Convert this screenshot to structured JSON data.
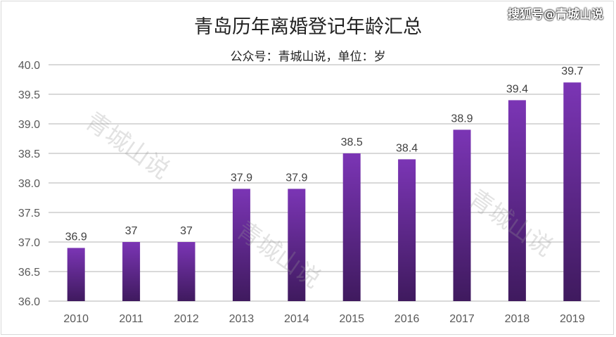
{
  "chart_data": {
    "type": "bar",
    "title": "青岛历年离婚登记年龄汇总",
    "subtitle": "公众号：青城山说，单位：岁",
    "categories": [
      "2010",
      "2011",
      "2012",
      "2013",
      "2014",
      "2015",
      "2016",
      "2017",
      "2018",
      "2019"
    ],
    "values": [
      36.9,
      37,
      37,
      37.9,
      37.9,
      38.5,
      38.4,
      38.9,
      39.4,
      39.7
    ],
    "data_labels": [
      "36.9",
      "37",
      "37",
      "37.9",
      "37.9",
      "38.5",
      "38.4",
      "38.9",
      "39.4",
      "39.7"
    ],
    "ylim": [
      36.0,
      40.0
    ],
    "yticks": [
      "36.0",
      "36.5",
      "37.0",
      "37.5",
      "38.0",
      "38.5",
      "39.0",
      "39.5",
      "40.0"
    ],
    "grid": true,
    "bar_color_top": "#7b35b5",
    "bar_color_bottom": "#3f1a5e"
  },
  "watermark": "青城山说",
  "source_logo": "搜狐号@青城山说"
}
